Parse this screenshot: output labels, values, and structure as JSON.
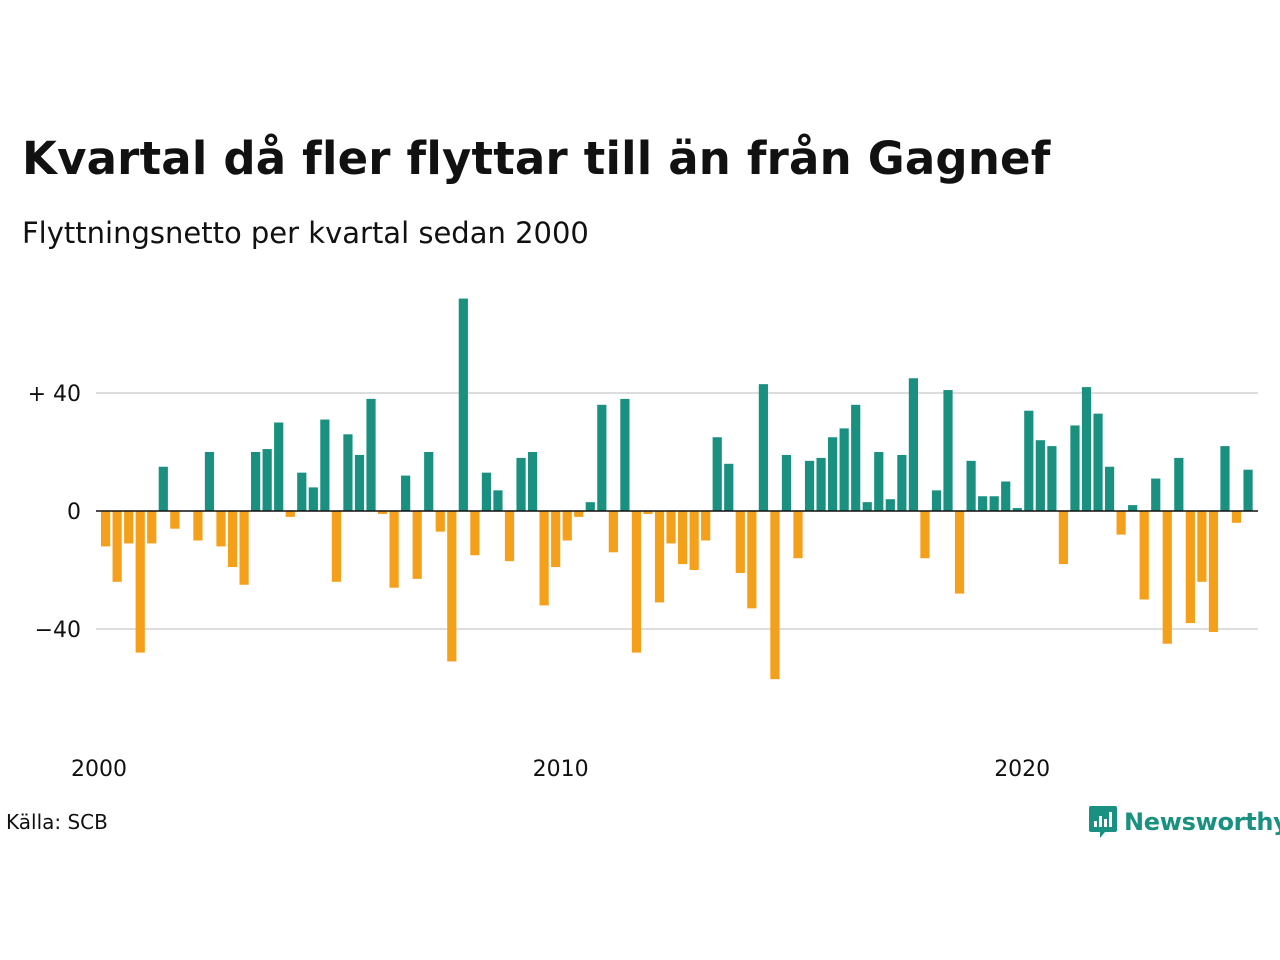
{
  "title": "Kvartal då fler flyttar till än från Gagnef",
  "subtitle": "Flyttningsnetto per kvartal sedan 2000",
  "source": "Källa: SCB",
  "brand": "Newsworthy",
  "colors": {
    "positive": "#1a9180",
    "negative": "#f5a01a",
    "grid": "#dddddd",
    "zero": "#111111"
  },
  "chart_data": {
    "type": "bar",
    "x_start": "2000 Q1",
    "ylim": [
      -60,
      72
    ],
    "y_ticks": [
      40,
      0,
      -40
    ],
    "y_tick_labels": [
      "+ 40",
      "0",
      "−40"
    ],
    "x_tick_labels": [
      "2000",
      "2010",
      "2020"
    ],
    "grid": "horizontal",
    "values": [
      -12,
      -24,
      -11,
      -48,
      -11,
      15,
      -6,
      0,
      -10,
      20,
      -12,
      -19,
      -25,
      20,
      21,
      30,
      -2,
      13,
      8,
      31,
      -24,
      26,
      19,
      38,
      -1,
      -26,
      12,
      -23,
      20,
      -7,
      -51,
      72,
      -15,
      13,
      7,
      -17,
      18,
      20,
      -32,
      -19,
      -10,
      -2,
      3,
      36,
      -14,
      38,
      -48,
      -1,
      -31,
      -11,
      -18,
      -20,
      -10,
      25,
      16,
      -21,
      -33,
      43,
      -57,
      19,
      -16,
      17,
      18,
      25,
      28,
      36,
      3,
      20,
      4,
      19,
      45,
      -16,
      7,
      41,
      -28,
      17,
      5,
      5,
      10,
      1,
      34,
      24,
      22,
      -18,
      29,
      42,
      33,
      15,
      -8,
      2,
      -30,
      11,
      -45,
      18,
      -38,
      -24,
      -41,
      22,
      -4,
      14
    ]
  }
}
